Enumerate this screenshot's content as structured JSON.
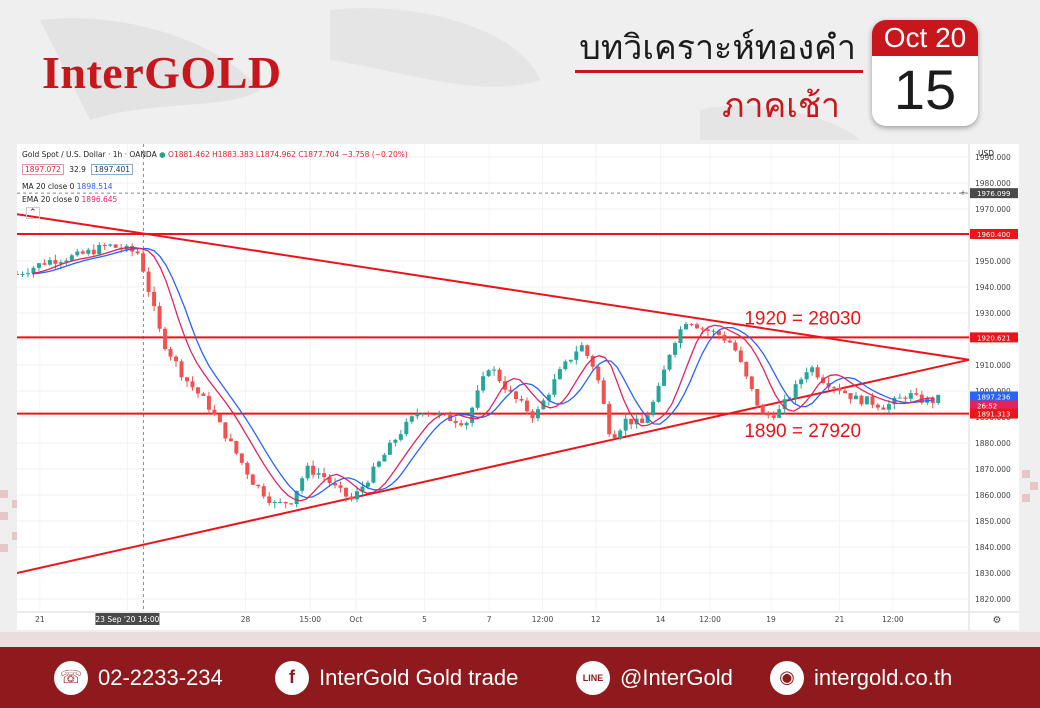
{
  "brand": {
    "name": "InterGOLD"
  },
  "header": {
    "title": "บทวิเคราะห์ทองคำ",
    "subtitle": "ภาคเช้า"
  },
  "calendar": {
    "month": "Oct 20",
    "day": "15"
  },
  "chart_info": {
    "symbol": "Gold Spot / U.S. Dollar · 1h · OANDA",
    "ohlc": "O1881.462 H1883.383 L1874.962 C1877.704 −3.758 (−0.20%)",
    "bid": "1897.072",
    "spread": "32.9",
    "ask": "1897.401",
    "ma_label": "MA 20 close 0",
    "ma_value": "1898.514",
    "ema_label": "EMA 20 close 0",
    "ema_value": "1896.645",
    "currency": "USD"
  },
  "chart_data": {
    "type": "line",
    "title": "",
    "xlabel": "",
    "ylabel": "",
    "ylim": [
      1815,
      1995
    ],
    "y_ticks": [
      "1990.000",
      "1980.000",
      "1970.000",
      "1960.000",
      "1950.000",
      "1940.000",
      "1930.000",
      "1920.000",
      "1910.000",
      "1900.000",
      "1890.000",
      "1880.000",
      "1870.000",
      "1860.000",
      "1850.000",
      "1840.000",
      "1830.000",
      "1820.000"
    ],
    "x_tick_labels": [
      "21",
      "23 Sep '20  14:00",
      "28",
      "15:00",
      "Oct",
      "5",
      "7",
      "12:00",
      "12",
      "14",
      "12:00",
      "19",
      "21",
      "12:00"
    ],
    "price_path_x": [
      0,
      4,
      8,
      12,
      16,
      19,
      22,
      25,
      28,
      31,
      34,
      36,
      38,
      40,
      42,
      44,
      47,
      50,
      53,
      56,
      59,
      62,
      65,
      68,
      71,
      74,
      76,
      78,
      80,
      82,
      84,
      86,
      88,
      90,
      92,
      94,
      96,
      98,
      100,
      102,
      104,
      106,
      108,
      110,
      112,
      114,
      116,
      117,
      118,
      120,
      121
    ],
    "price_path_y": [
      1945,
      1950,
      1952,
      1956,
      1953,
      1920,
      1905,
      1895,
      1880,
      1865,
      1856,
      1858,
      1870,
      1868,
      1862,
      1858,
      1870,
      1883,
      1893,
      1890,
      1888,
      1910,
      1898,
      1890,
      1906,
      1918,
      1908,
      1882,
      1889,
      1887,
      1898,
      1918,
      1928,
      1924,
      1922,
      1918,
      1903,
      1890,
      1892,
      1900,
      1910,
      1904,
      1901,
      1897,
      1896,
      1894,
      1897,
      1899,
      1897,
      1896,
      1897
    ],
    "series": [
      {
        "name": "MA 20 close 0",
        "color": "#2962ff"
      },
      {
        "name": "EMA 20 close 0",
        "color": "#e0245e"
      }
    ],
    "horizontal_levels": [
      1960.4,
      1920.621,
      1891.313
    ],
    "price_labels": [
      "1976.099",
      "1960.400",
      "1920.621",
      "1897.236",
      "26:52",
      "1891.313"
    ],
    "annotations": [
      "1920 = 28030",
      "1890 = 27920"
    ],
    "triangle_upper_line": [
      [
        0,
        1968
      ],
      [
        125,
        1912
      ]
    ],
    "triangle_lower_line": [
      [
        0,
        1830
      ],
      [
        125,
        1912
      ]
    ],
    "grid": true
  },
  "footer": {
    "phone": "02-2233-234",
    "facebook": "InterGold Gold trade",
    "line": "@InterGold",
    "website": "intergold.co.th"
  },
  "colors": {
    "brand_red": "#c8161d",
    "footer_bg": "#8f1a1d",
    "trend_red": "#e8151b",
    "ma_blue": "#2962ff",
    "ema_pink": "#e0245e"
  }
}
